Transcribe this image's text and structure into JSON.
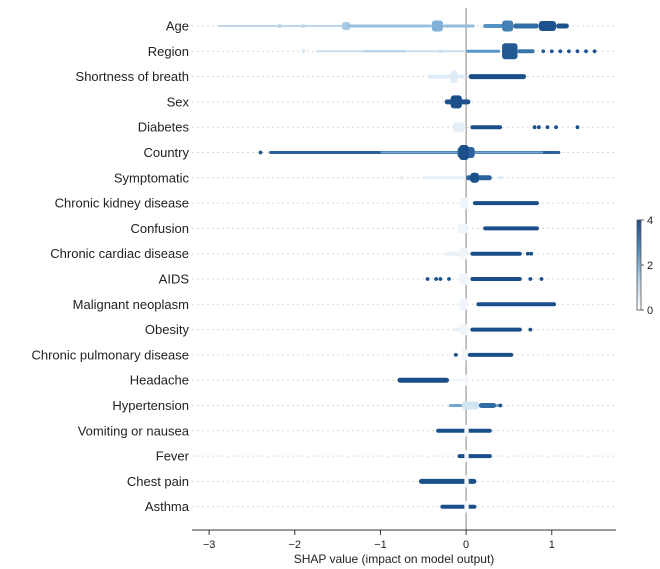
{
  "chart_data": {
    "type": "scatter",
    "subtype": "shap-beeswarm",
    "title": "",
    "xlabel": "SHAP value (impact on model output)",
    "ylabel": "",
    "xlim": [
      -3.2,
      1.75
    ],
    "x_ticks": [
      -3,
      -2,
      -1,
      0,
      1
    ],
    "x_tick_labels": [
      "−3",
      "−2",
      "−1",
      "0",
      "1"
    ],
    "colorbar": {
      "min": 0,
      "max": 4,
      "ticks": [
        0,
        2,
        4
      ],
      "tick_labels": [
        "0",
        "2",
        "4"
      ],
      "colors": [
        "#ffffff",
        "#b7d3ea",
        "#4f8fc3",
        "#1a4f8a"
      ]
    },
    "features": [
      {
        "name": "Age",
        "segments": [
          {
            "x0": -2.9,
            "x1": -1.4,
            "th": 2,
            "c": 1.2
          },
          {
            "x0": -1.45,
            "x1": -1.35,
            "th": 8,
            "c": 1.5
          },
          {
            "x0": -2.2,
            "x1": -2.15,
            "th": 4,
            "c": 1.2
          },
          {
            "x0": -1.4,
            "x1": -0.4,
            "th": 3,
            "c": 1.7
          },
          {
            "x0": -0.4,
            "x1": -0.27,
            "th": 11,
            "c": 2.0
          },
          {
            "x0": -0.27,
            "x1": 0.1,
            "th": 3,
            "c": 1.8
          },
          {
            "x0": 0.2,
            "x1": 0.45,
            "th": 4,
            "c": 2.6
          },
          {
            "x0": 0.42,
            "x1": 0.55,
            "th": 11,
            "c": 3.0
          },
          {
            "x0": 0.55,
            "x1": 0.85,
            "th": 5,
            "c": 3.4
          },
          {
            "x0": 0.85,
            "x1": 1.05,
            "th": 10,
            "c": 3.9
          },
          {
            "x0": 1.05,
            "x1": 1.2,
            "th": 5,
            "c": 3.9
          }
        ],
        "dots": [
          {
            "x": -1.9,
            "c": 1.2
          }
        ]
      },
      {
        "name": "Region",
        "segments": [
          {
            "x0": -1.75,
            "x1": 0.0,
            "th": 2,
            "c": 1.0
          },
          {
            "x0": -1.2,
            "x1": -0.7,
            "th": 2,
            "c": 1.4
          },
          {
            "x0": 0.0,
            "x1": 0.4,
            "th": 3,
            "c": 2.5
          },
          {
            "x0": 0.42,
            "x1": 0.6,
            "th": 16,
            "c": 3.8
          },
          {
            "x0": 0.6,
            "x1": 0.8,
            "th": 4,
            "c": 3.2
          }
        ],
        "dots": [
          {
            "x": -1.9,
            "c": 0.8
          },
          {
            "x": -0.3,
            "c": 1.0
          },
          {
            "x": 0.9,
            "c": 3.6
          },
          {
            "x": 1.0,
            "c": 3.8
          },
          {
            "x": 1.1,
            "c": 3.9
          },
          {
            "x": 1.2,
            "c": 3.9
          },
          {
            "x": 1.3,
            "c": 3.9
          },
          {
            "x": 1.4,
            "c": 3.9
          },
          {
            "x": 1.5,
            "c": 4.0
          }
        ]
      },
      {
        "name": "Shortness of breath",
        "segments": [
          {
            "x0": -0.45,
            "x1": 0.0,
            "th": 4,
            "c": 0.6
          },
          {
            "x0": -0.18,
            "x1": -0.1,
            "th": 13,
            "c": 0.6
          },
          {
            "x0": 0.03,
            "x1": 0.7,
            "th": 5,
            "c": 4.0
          }
        ],
        "dots": []
      },
      {
        "name": "Sex",
        "segments": [
          {
            "x0": -0.25,
            "x1": 0.05,
            "th": 5,
            "c": 3.9
          },
          {
            "x0": -0.18,
            "x1": -0.05,
            "th": 13,
            "c": 4.0
          }
        ],
        "dots": []
      },
      {
        "name": "Diabetes",
        "segments": [
          {
            "x0": -0.15,
            "x1": -0.02,
            "th": 10,
            "c": 0.5
          },
          {
            "x0": 0.05,
            "x1": 0.42,
            "th": 4,
            "c": 4.0
          }
        ],
        "dots": [
          {
            "x": 0.8,
            "c": 4.0
          },
          {
            "x": 0.85,
            "c": 4.0
          },
          {
            "x": 0.95,
            "c": 4.0
          },
          {
            "x": 1.05,
            "c": 4.0
          },
          {
            "x": 1.3,
            "c": 4.0
          }
        ]
      },
      {
        "name": "Country",
        "segments": [
          {
            "x0": -2.3,
            "x1": 1.1,
            "th": 3,
            "c": 3.6
          },
          {
            "x0": -1.0,
            "x1": 0.9,
            "th": 2,
            "c": 2.2
          },
          {
            "x0": -0.1,
            "x1": 0.1,
            "th": 11,
            "c": 3.6
          },
          {
            "x0": -0.08,
            "x1": 0.03,
            "th": 15,
            "c": 4.0
          }
        ],
        "dots": [
          {
            "x": -2.4,
            "c": 3.9
          }
        ]
      },
      {
        "name": "Symptomatic",
        "segments": [
          {
            "x0": -0.5,
            "x1": 0.0,
            "th": 3,
            "c": 0.5
          },
          {
            "x0": 0.0,
            "x1": 0.3,
            "th": 5,
            "c": 3.6
          },
          {
            "x0": 0.05,
            "x1": 0.15,
            "th": 10,
            "c": 4.0
          }
        ],
        "dots": [
          {
            "x": -0.75,
            "c": 0.5
          },
          {
            "x": 0.4,
            "c": 0.6
          }
        ]
      },
      {
        "name": "Chronic kidney disease",
        "segments": [
          {
            "x0": -0.07,
            "x1": 0.02,
            "th": 12,
            "c": 0.3
          },
          {
            "x0": 0.08,
            "x1": 0.85,
            "th": 4,
            "c": 4.0
          }
        ],
        "dots": []
      },
      {
        "name": "Confusion",
        "segments": [
          {
            "x0": -0.1,
            "x1": 0.02,
            "th": 10,
            "c": 0.3
          },
          {
            "x0": 0.2,
            "x1": 0.85,
            "th": 4,
            "c": 4.0
          }
        ],
        "dots": []
      },
      {
        "name": "Chronic cardiac disease",
        "segments": [
          {
            "x0": -0.25,
            "x1": 0.0,
            "th": 4,
            "c": 0.4
          },
          {
            "x0": -0.08,
            "x1": 0.02,
            "th": 12,
            "c": 0.3
          },
          {
            "x0": 0.05,
            "x1": 0.65,
            "th": 4,
            "c": 4.0
          }
        ],
        "dots": [
          {
            "x": 0.72,
            "c": 4.0
          },
          {
            "x": 0.76,
            "c": 4.0
          }
        ]
      },
      {
        "name": "AIDS",
        "segments": [
          {
            "x0": -0.08,
            "x1": 0.02,
            "th": 12,
            "c": 0.3
          },
          {
            "x0": 0.05,
            "x1": 0.65,
            "th": 4,
            "c": 4.0
          }
        ],
        "dots": [
          {
            "x": -0.45,
            "c": 4.0
          },
          {
            "x": -0.35,
            "c": 4.0
          },
          {
            "x": -0.3,
            "c": 4.0
          },
          {
            "x": -0.2,
            "c": 3.9
          },
          {
            "x": 0.75,
            "c": 4.0
          },
          {
            "x": 0.88,
            "c": 4.0
          }
        ]
      },
      {
        "name": "Malignant neoplasm",
        "segments": [
          {
            "x0": -0.08,
            "x1": 0.02,
            "th": 12,
            "c": 0.3
          },
          {
            "x0": 0.12,
            "x1": 1.05,
            "th": 4,
            "c": 4.0
          }
        ],
        "dots": []
      },
      {
        "name": "Obesity",
        "segments": [
          {
            "x0": -0.15,
            "x1": 0.02,
            "th": 4,
            "c": 0.4
          },
          {
            "x0": -0.07,
            "x1": 0.02,
            "th": 12,
            "c": 0.3
          },
          {
            "x0": 0.05,
            "x1": 0.65,
            "th": 4,
            "c": 4.0
          }
        ],
        "dots": [
          {
            "x": 0.75,
            "c": 4.0
          }
        ]
      },
      {
        "name": "Chronic pulmonary disease",
        "segments": [
          {
            "x0": -0.05,
            "x1": 0.02,
            "th": 12,
            "c": 0.3
          },
          {
            "x0": 0.02,
            "x1": 0.55,
            "th": 4,
            "c": 4.0
          }
        ],
        "dots": [
          {
            "x": -0.12,
            "c": 4.0
          }
        ]
      },
      {
        "name": "Headache",
        "segments": [
          {
            "x0": -0.8,
            "x1": -0.2,
            "th": 5,
            "c": 4.0
          },
          {
            "x0": -0.2,
            "x1": 0.02,
            "th": 3,
            "c": 0.3
          },
          {
            "x0": -0.01,
            "x1": 0.03,
            "th": 12,
            "c": 0.2
          }
        ],
        "dots": []
      },
      {
        "name": "Hypertension",
        "segments": [
          {
            "x0": -0.2,
            "x1": 0.4,
            "th": 3,
            "c": 2.2
          },
          {
            "x0": -0.05,
            "x1": 0.15,
            "th": 8,
            "c": 0.8
          },
          {
            "x0": 0.15,
            "x1": 0.35,
            "th": 5,
            "c": 3.4
          }
        ],
        "dots": [
          {
            "x": 0.4,
            "c": 4.0
          }
        ]
      },
      {
        "name": "Vomiting or nausea",
        "segments": [
          {
            "x0": -0.35,
            "x1": 0.3,
            "th": 4,
            "c": 4.0
          },
          {
            "x0": -0.02,
            "x1": 0.03,
            "th": 12,
            "c": 0.2
          }
        ],
        "dots": []
      },
      {
        "name": "Fever",
        "segments": [
          {
            "x0": -0.1,
            "x1": 0.3,
            "th": 4,
            "c": 4.0
          },
          {
            "x0": -0.02,
            "x1": 0.03,
            "th": 12,
            "c": 0.2
          }
        ],
        "dots": []
      },
      {
        "name": "Chest pain",
        "segments": [
          {
            "x0": -0.55,
            "x1": 0.12,
            "th": 5,
            "c": 4.0
          },
          {
            "x0": -0.02,
            "x1": 0.03,
            "th": 12,
            "c": 0.2
          }
        ],
        "dots": []
      },
      {
        "name": "Asthma",
        "segments": [
          {
            "x0": -0.3,
            "x1": 0.12,
            "th": 4,
            "c": 4.0
          },
          {
            "x0": -0.02,
            "x1": 0.03,
            "th": 12,
            "c": 0.2
          }
        ],
        "dots": []
      }
    ]
  }
}
